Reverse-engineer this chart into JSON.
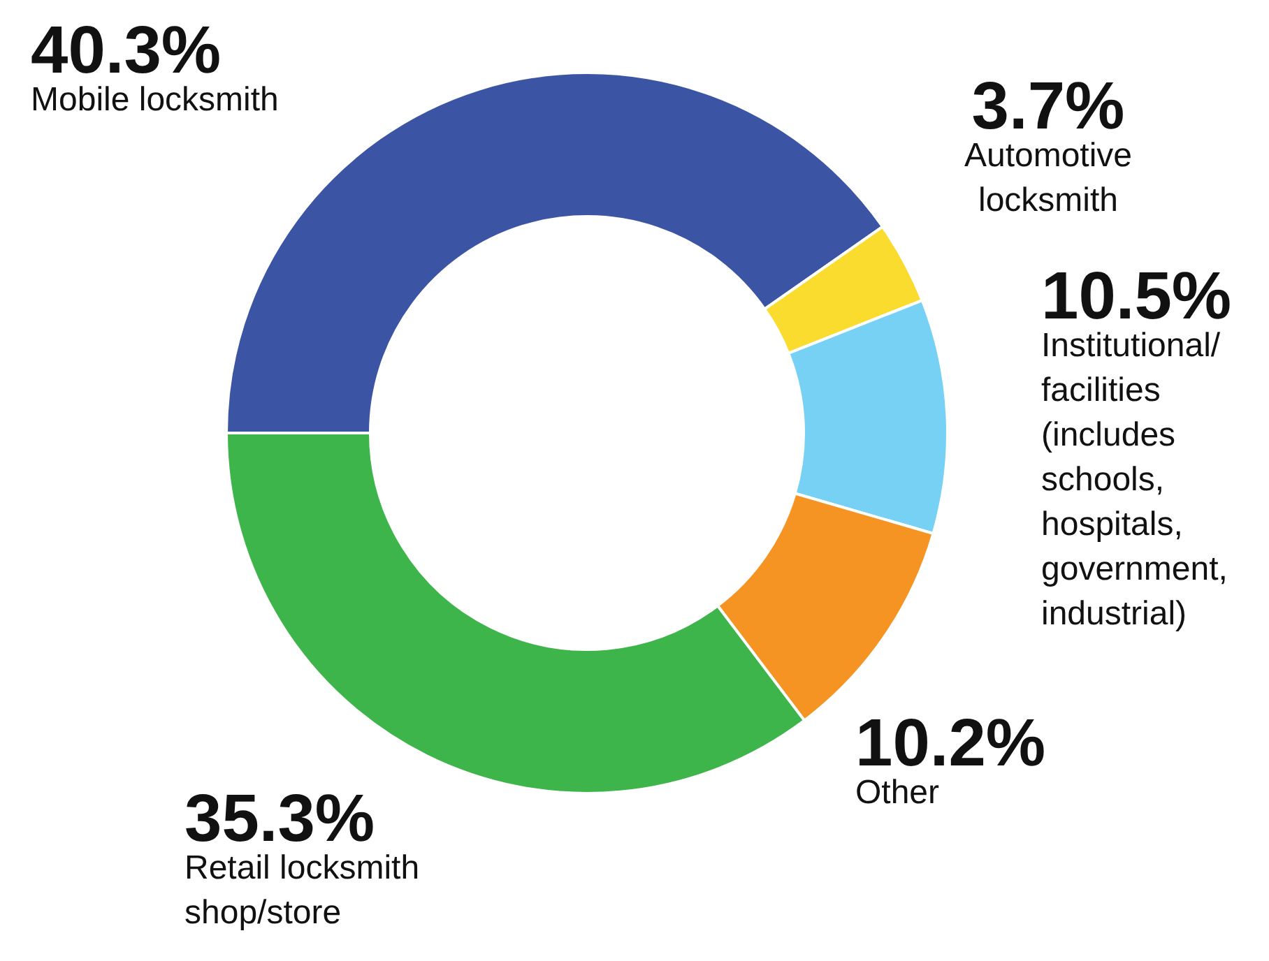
{
  "chart_data": {
    "type": "donut",
    "categories": [
      "Mobile locksmith",
      "Automotive locksmith",
      "Institutional/ facilities (includes schools, hospitals, government, industrial)",
      "Other",
      "Retail locksmith shop/store"
    ],
    "values": [
      40.3,
      3.7,
      10.5,
      10.2,
      35.3
    ],
    "colors": [
      "#3b54a4",
      "#f9dc2e",
      "#77d1f5",
      "#f59422",
      "#3db54a"
    ],
    "value_labels": [
      "40.3%",
      "3.7%",
      "10.5%",
      "10.2%",
      "35.3%"
    ]
  }
}
